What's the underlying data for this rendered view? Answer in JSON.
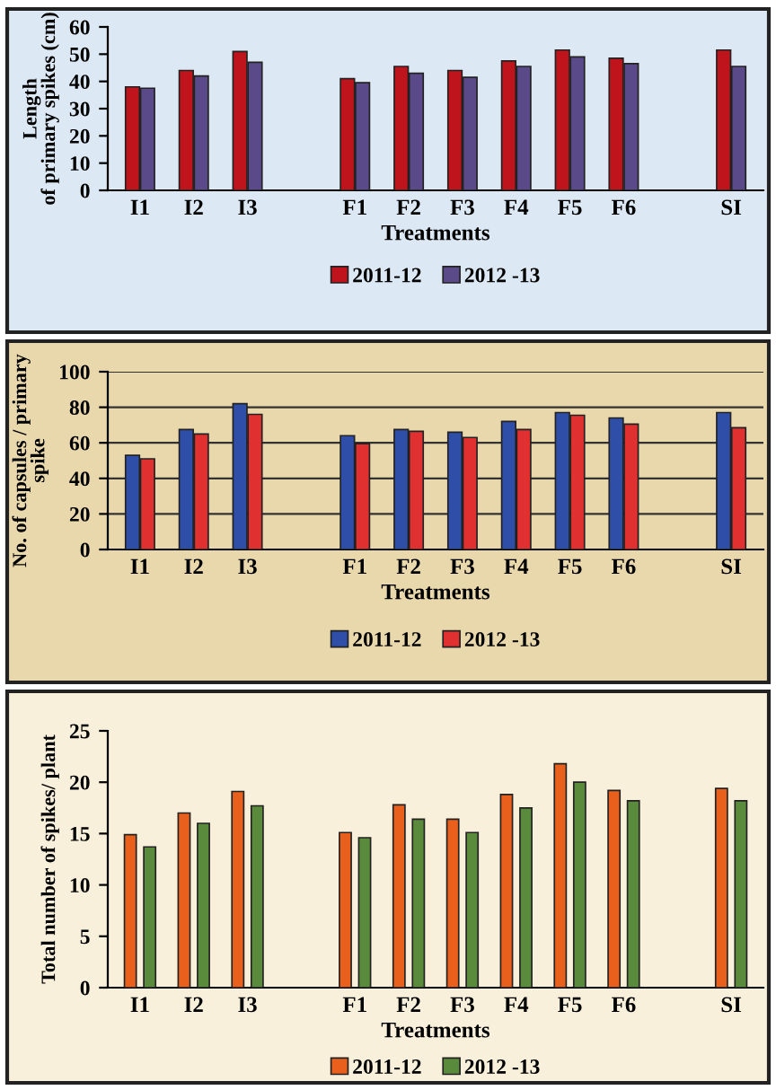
{
  "chart_data": [
    {
      "type": "bar",
      "xlabel": "Treatments",
      "ylabel": "Length\nof primary spikes (cm)",
      "categories": [
        "I1",
        "I2",
        "I3",
        null,
        "F1",
        "F2",
        "F3",
        "F4",
        "F5",
        "F6",
        null,
        "SI"
      ],
      "ylim": [
        0,
        60
      ],
      "yticks": [
        0,
        10,
        20,
        30,
        40,
        50,
        60
      ],
      "grid": false,
      "legend": "bottom",
      "series": [
        {
          "name": "2011-12",
          "color": "#c0141c",
          "values": [
            38,
            44,
            51,
            null,
            41,
            45.5,
            44,
            47.5,
            51.5,
            48.5,
            null,
            51.5
          ]
        },
        {
          "name": "2012 -13",
          "color": "#5a4a8a",
          "values": [
            37.5,
            42,
            47,
            null,
            39.5,
            43,
            41.5,
            45.5,
            49,
            46.5,
            null,
            45.5
          ]
        }
      ]
    },
    {
      "type": "bar",
      "xlabel": "Treatments",
      "ylabel": "No. of capsules / primary\nspike",
      "categories": [
        "I1",
        "I2",
        "I3",
        null,
        "F1",
        "F2",
        "F3",
        "F4",
        "F5",
        "F6",
        null,
        "SI"
      ],
      "ylim": [
        0,
        100
      ],
      "yticks": [
        0,
        20,
        40,
        60,
        80,
        100
      ],
      "grid": "y",
      "legend": "bottom",
      "series": [
        {
          "name": "2011-12",
          "color": "#2f4ea8",
          "values": [
            53,
            67.5,
            82,
            null,
            64,
            67.5,
            66,
            72,
            77,
            74,
            null,
            77
          ]
        },
        {
          "name": "2012 -13",
          "color": "#e03030",
          "values": [
            51,
            65,
            76,
            null,
            59.5,
            66.5,
            63,
            67.5,
            75.5,
            70.5,
            null,
            68.5
          ]
        }
      ]
    },
    {
      "type": "bar",
      "xlabel": "Treatments",
      "ylabel": "Total number of spikes/ plant",
      "categories": [
        "I1",
        "I2",
        "I3",
        null,
        "F1",
        "F2",
        "F3",
        "F4",
        "F5",
        "F6",
        null,
        "SI"
      ],
      "ylim": [
        0,
        25
      ],
      "yticks": [
        0,
        5,
        10,
        15,
        20,
        25
      ],
      "grid": false,
      "legend": "bottom",
      "series": [
        {
          "name": "2011-12",
          "color": "#e8601c",
          "values": [
            14.9,
            17,
            19.1,
            null,
            15.1,
            17.8,
            16.4,
            18.8,
            21.8,
            19.2,
            null,
            19.4
          ]
        },
        {
          "name": "2012 -13",
          "color": "#5a8a3c",
          "values": [
            13.7,
            16,
            17.7,
            null,
            14.6,
            16.4,
            15.1,
            17.5,
            20,
            18.2,
            null,
            18.2
          ]
        }
      ]
    }
  ]
}
